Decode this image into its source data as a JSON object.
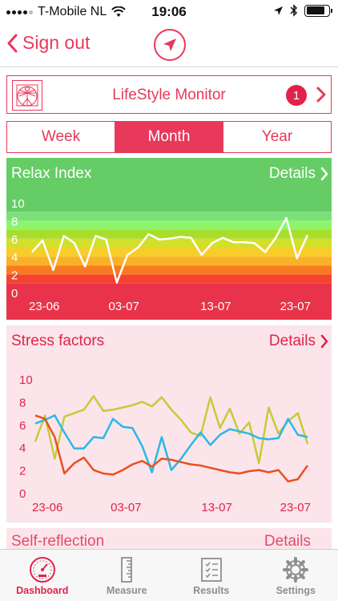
{
  "status_bar": {
    "carrier": "T-Mobile NL",
    "time": "19:06",
    "battery_level": 0.85
  },
  "nav": {
    "back_label": "Sign out",
    "locate_icon": "location-arrow-icon"
  },
  "monitor": {
    "title": "LifeStyle Monitor",
    "badge": "1",
    "logo_icon": "vitruvian-man-icon"
  },
  "period": {
    "options": [
      "Week",
      "Month",
      "Year"
    ],
    "selected": "Month"
  },
  "relax_card": {
    "title": "Relax Index",
    "details_label": "Details"
  },
  "stress_card": {
    "title": "Stress factors",
    "details_label": "Details"
  },
  "self_card": {
    "title": "Self-reflection",
    "details_label": "Details"
  },
  "tabs": [
    {
      "label": "Dashboard",
      "icon": "gauge-icon",
      "active": true
    },
    {
      "label": "Measure",
      "icon": "ruler-icon",
      "active": false
    },
    {
      "label": "Results",
      "icon": "clipboard-list-icon",
      "active": false
    },
    {
      "label": "Settings",
      "icon": "gear-icon",
      "active": false
    }
  ],
  "colors": {
    "accent": "#e8385b",
    "badge": "#e0234a",
    "stress_bg": "#fbe5ea",
    "series_yellow": "#c4cc3a",
    "series_blue": "#2cb7e8",
    "series_orange": "#ea5020"
  },
  "chart_data": [
    {
      "type": "line",
      "title": "Relax Index",
      "x_tick_labels": [
        "23-06",
        "03-07",
        "13-07",
        "23-07"
      ],
      "y_tick_labels": [
        "0",
        "2",
        "4",
        "6",
        "8",
        "10"
      ],
      "ylim": [
        0,
        10
      ],
      "bands": [
        {
          "from": 0,
          "to": 1,
          "color": "#e8334a"
        },
        {
          "from": 1,
          "to": 2,
          "color": "#f4432f"
        },
        {
          "from": 2,
          "to": 3,
          "color": "#f87a20"
        },
        {
          "from": 3,
          "to": 4,
          "color": "#fbb02a"
        },
        {
          "from": 4,
          "to": 5,
          "color": "#f7cd2a"
        },
        {
          "from": 5,
          "to": 6,
          "color": "#d2e02b"
        },
        {
          "from": 6,
          "to": 7,
          "color": "#a9dd2c"
        },
        {
          "from": 7,
          "to": 8,
          "color": "#8ef56a"
        },
        {
          "from": 8,
          "to": 9,
          "color": "#7be07a"
        },
        {
          "from": 9,
          "to": 10,
          "color": "#66cc66"
        }
      ],
      "series": [
        {
          "color": "#ffffff",
          "values": [
            4.5,
            5.8,
            2.5,
            6.3,
            5.5,
            2.9,
            6.3,
            5.9,
            1.1,
            4.2,
            5.0,
            6.5,
            5.9,
            6.0,
            6.2,
            6.1,
            4.2,
            5.5,
            6.1,
            5.6,
            5.6,
            5.5,
            4.5,
            6.1,
            8.3,
            3.8,
            6.4
          ]
        }
      ]
    },
    {
      "type": "line",
      "title": "Stress factors",
      "x_tick_labels": [
        "23-06",
        "03-07",
        "13-07",
        "23-07"
      ],
      "y_tick_labels": [
        "0",
        "2",
        "4",
        "6",
        "8",
        "10"
      ],
      "ylim": [
        0,
        10
      ],
      "series": [
        {
          "color": "#c4cc3a",
          "values": [
            4.5,
            6.8,
            3.0,
            6.7,
            7.0,
            7.3,
            8.5,
            7.2,
            7.3,
            7.5,
            7.7,
            8.0,
            7.6,
            8.4,
            7.3,
            6.4,
            5.3,
            5.0,
            8.4,
            5.7,
            7.4,
            5.2,
            6.2,
            2.6,
            7.5,
            5.2,
            6.3,
            7.0,
            4.3
          ]
        },
        {
          "color": "#2cb7e8",
          "values": [
            6.1,
            6.4,
            6.8,
            5.3,
            3.9,
            3.9,
            4.9,
            4.8,
            6.5,
            5.8,
            5.7,
            4.1,
            1.8,
            4.9,
            2.0,
            3.0,
            4.2,
            5.3,
            4.2,
            5.1,
            5.6,
            5.4,
            5.2,
            4.8,
            4.7,
            4.8,
            6.5,
            5.1,
            4.9
          ]
        },
        {
          "color": "#ea5020",
          "values": [
            6.8,
            6.5,
            4.9,
            1.7,
            2.6,
            3.1,
            2.0,
            1.7,
            1.6,
            2.0,
            2.5,
            2.8,
            2.3,
            3.0,
            2.9,
            2.7,
            2.5,
            2.4,
            2.2,
            2.0,
            1.8,
            1.7,
            1.9,
            2.0,
            1.8,
            2.0,
            1.0,
            1.2,
            2.4
          ]
        }
      ]
    }
  ]
}
